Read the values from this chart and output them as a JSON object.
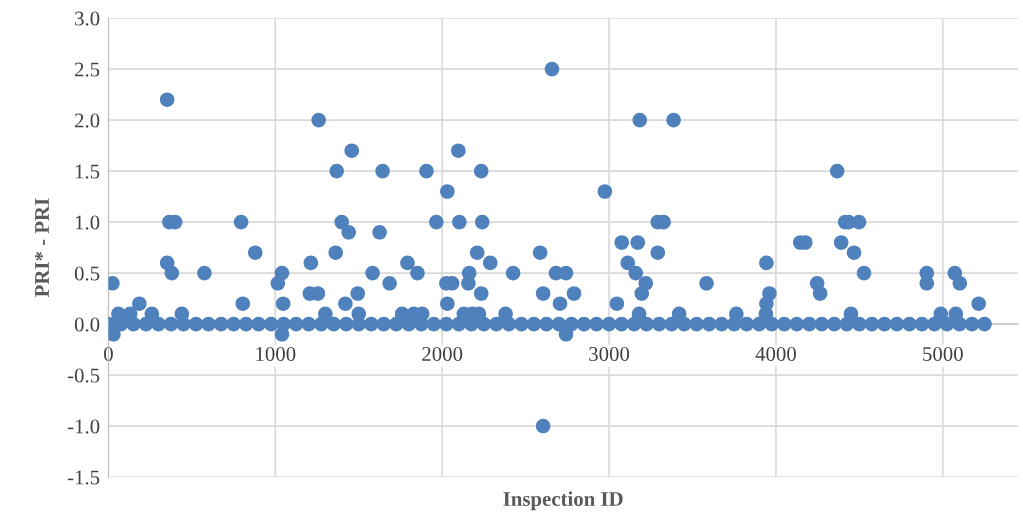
{
  "chart_data": {
    "type": "scatter",
    "xlabel": "Inspection ID",
    "ylabel": "PRI* - PRI",
    "xlim": [
      0,
      5450
    ],
    "xticks": [
      0,
      1000,
      2000,
      3000,
      4000,
      5000
    ],
    "ylim": [
      -1.5,
      3.0
    ],
    "yticks": [
      {
        "value": -1.5,
        "label": "-1.5"
      },
      {
        "value": -1.0,
        "label": "-1.0"
      },
      {
        "value": -0.5,
        "label": "-0.5"
      },
      {
        "value": 0,
        "label": "0.0"
      },
      {
        "value": 0.5,
        "label": "0.5"
      },
      {
        "value": 1.0,
        "label": "1.0"
      },
      {
        "value": 1.5,
        "label": "1.5"
      },
      {
        "value": 2.0,
        "label": "2.0"
      },
      {
        "value": 2.5,
        "label": "2.5"
      },
      {
        "value": 3.0,
        "label": "3.0"
      }
    ],
    "grid": true,
    "marker": "circle",
    "series": [
      {
        "color": "#4f81bd",
        "x": [
          0,
          75,
          150,
          225,
          300,
          375,
          450,
          525,
          600,
          675,
          750,
          825,
          900,
          975,
          1050,
          1125,
          1200,
          1275,
          1350,
          1425,
          1500,
          1575,
          1650,
          1725,
          1800,
          1875,
          1950,
          2025,
          2100,
          2175,
          2250,
          2325,
          2400,
          2475,
          2550,
          2625,
          2700,
          2775,
          2850,
          2925,
          3000,
          3075,
          3150,
          3225,
          3300,
          3375,
          3450,
          3525,
          3600,
          3675,
          3750,
          3825,
          3900,
          3975,
          4050,
          4125,
          4200,
          4275,
          4350,
          4425,
          4500,
          4575,
          4650,
          4725,
          4800,
          4875,
          4950,
          5025,
          5100,
          5175,
          5250,
          24,
          30,
          60,
          130,
          185,
          260,
          352,
          352,
          365,
          400,
          380,
          440,
          575,
          795,
          805,
          880,
          1015,
          1040,
          1047,
          1040,
          1260,
          1458,
          1368,
          1643,
          1398,
          1440,
          1625,
          1362,
          1213,
          1583,
          1685,
          1792,
          1207,
          1255,
          1494,
          1300,
          1420,
          1500,
          2658,
          2605,
          3184,
          3387,
          2097,
          1906,
          2234,
          2031,
          2975,
          1965,
          2103,
          2240,
          3292,
          3327,
          2210,
          2587,
          3076,
          3172,
          3292,
          2288,
          3112,
          1852,
          2162,
          2425,
          2682,
          2742,
          3160,
          2025,
          2060,
          2157,
          3220,
          3584,
          2234,
          2605,
          2790,
          3196,
          2031,
          2706,
          3047,
          2742,
          1760,
          1830,
          1880,
          2130,
          2180,
          2220,
          2380,
          3180,
          3420,
          4367,
          4415,
          4435,
          4498,
          4146,
          4176,
          4391,
          4468,
          3943,
          4528,
          4247,
          4265,
          3961,
          3943,
          4904,
          4904,
          5072,
          5102,
          5215,
          4450,
          3763,
          4988,
          5078,
          3940
        ],
        "values": [
          0,
          0,
          0,
          0,
          0,
          0,
          0,
          0,
          0,
          0,
          0,
          0,
          0,
          0,
          0,
          0,
          0,
          0,
          0,
          0,
          0,
          0,
          0,
          0,
          0,
          0,
          0,
          0,
          0,
          0,
          0,
          0,
          0,
          0,
          0,
          0,
          0,
          0,
          0,
          0,
          0,
          0,
          0,
          0,
          0,
          0,
          0,
          0,
          0,
          0,
          0,
          0,
          0,
          0,
          0,
          0,
          0,
          0,
          0,
          0,
          0,
          0,
          0,
          0,
          0,
          0,
          0,
          0,
          0,
          0,
          0,
          0.4,
          -0.1,
          0.1,
          0.1,
          0.2,
          0.1,
          2.2,
          0.6,
          1.0,
          1.0,
          0.5,
          0.1,
          0.5,
          1.0,
          0.2,
          0.7,
          0.4,
          0.5,
          0.2,
          -0.1,
          2.0,
          1.7,
          1.5,
          1.5,
          1.0,
          0.9,
          0.9,
          0.7,
          0.6,
          0.5,
          0.4,
          0.6,
          0.3,
          0.3,
          0.3,
          0.1,
          0.2,
          0.1,
          2.5,
          -1.0,
          2.0,
          2.0,
          1.7,
          1.5,
          1.5,
          1.3,
          1.3,
          1.0,
          1.0,
          1.0,
          1.0,
          1.0,
          0.7,
          0.7,
          0.8,
          0.8,
          0.7,
          0.6,
          0.6,
          0.5,
          0.5,
          0.5,
          0.5,
          0.5,
          0.5,
          0.4,
          0.4,
          0.4,
          0.4,
          0.4,
          0.3,
          0.3,
          0.3,
          0.3,
          0.2,
          0.2,
          0.2,
          -0.1,
          0.1,
          0.1,
          0.1,
          0.1,
          0.1,
          0.1,
          0.1,
          0.1,
          0.1,
          1.5,
          1.0,
          1.0,
          1.0,
          0.8,
          0.8,
          0.8,
          0.7,
          0.6,
          0.5,
          0.4,
          0.3,
          0.3,
          0.2,
          0.5,
          0.4,
          0.5,
          0.4,
          0.2,
          0.1,
          0.1,
          0.1,
          0.1,
          0.1
        ]
      }
    ]
  }
}
